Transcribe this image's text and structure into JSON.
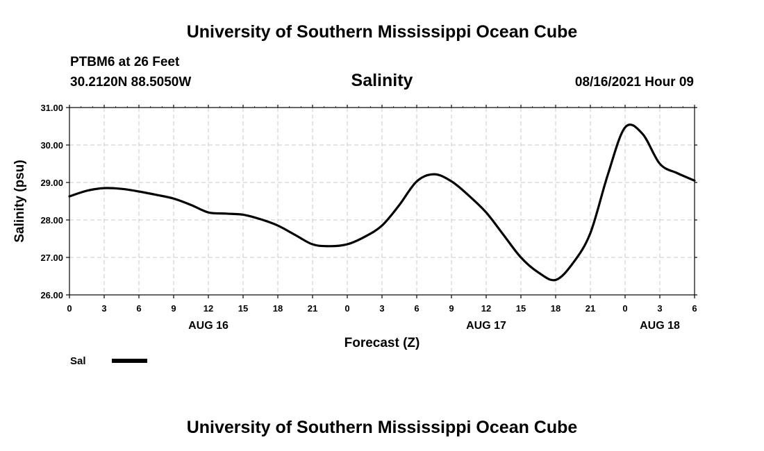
{
  "chart_data": {
    "type": "line",
    "title": "University of Southern Mississippi Ocean Cube",
    "footer_title": "University of Southern Mississippi Ocean Cube",
    "station": "PTBM6 at 26 Feet",
    "coordinates": "30.2120N  88.5050W",
    "variable": "Salinity",
    "timestamp": "08/16/2021 Hour 09",
    "xlabel": "Forecast (Z)",
    "ylabel": "Salinity (psu)",
    "ylim": [
      26.0,
      31.0
    ],
    "yticks": [
      "26.00",
      "27.00",
      "28.00",
      "29.00",
      "30.00",
      "31.00"
    ],
    "yticks_values": [
      26,
      27,
      28,
      29,
      30,
      31
    ],
    "xlim": [
      0,
      54
    ],
    "xticks_hours": [
      0,
      3,
      6,
      9,
      12,
      15,
      18,
      21,
      24,
      27,
      30,
      33,
      36,
      39,
      42,
      45,
      48,
      51,
      54
    ],
    "xtick_labels": [
      "0",
      "3",
      "6",
      "9",
      "12",
      "15",
      "18",
      "21",
      "0",
      "3",
      "6",
      "9",
      "12",
      "15",
      "18",
      "21",
      "0",
      "3",
      "6"
    ],
    "date_labels": [
      {
        "text": "AUG 16",
        "hour": 12
      },
      {
        "text": "AUG 17",
        "hour": 36
      },
      {
        "text": "AUG 18",
        "hour": 51
      }
    ],
    "grid": true,
    "series": [
      {
        "name": "Sal",
        "color": "#000000",
        "x": [
          0,
          1.5,
          3,
          4.5,
          6,
          7.5,
          9,
          10.5,
          12,
          13.5,
          15,
          16.5,
          18,
          19.5,
          21,
          22.5,
          24,
          25.5,
          27,
          28.5,
          30,
          31.5,
          33,
          34.5,
          36,
          37.5,
          39,
          40.5,
          42,
          43.5,
          45,
          46.5,
          48,
          49.5,
          51,
          52.5,
          54
        ],
        "values": [
          28.63,
          28.78,
          28.85,
          28.83,
          28.76,
          28.67,
          28.57,
          28.4,
          28.2,
          28.17,
          28.14,
          28.02,
          27.85,
          27.6,
          27.35,
          27.3,
          27.35,
          27.55,
          27.85,
          28.4,
          29.03,
          29.22,
          29.03,
          28.65,
          28.2,
          27.6,
          27.0,
          26.6,
          26.4,
          26.85,
          27.65,
          29.2,
          30.47,
          30.3,
          29.5,
          29.25,
          29.05
        ]
      }
    ],
    "legend": [
      {
        "label": "Sal",
        "color": "#000000"
      }
    ]
  }
}
